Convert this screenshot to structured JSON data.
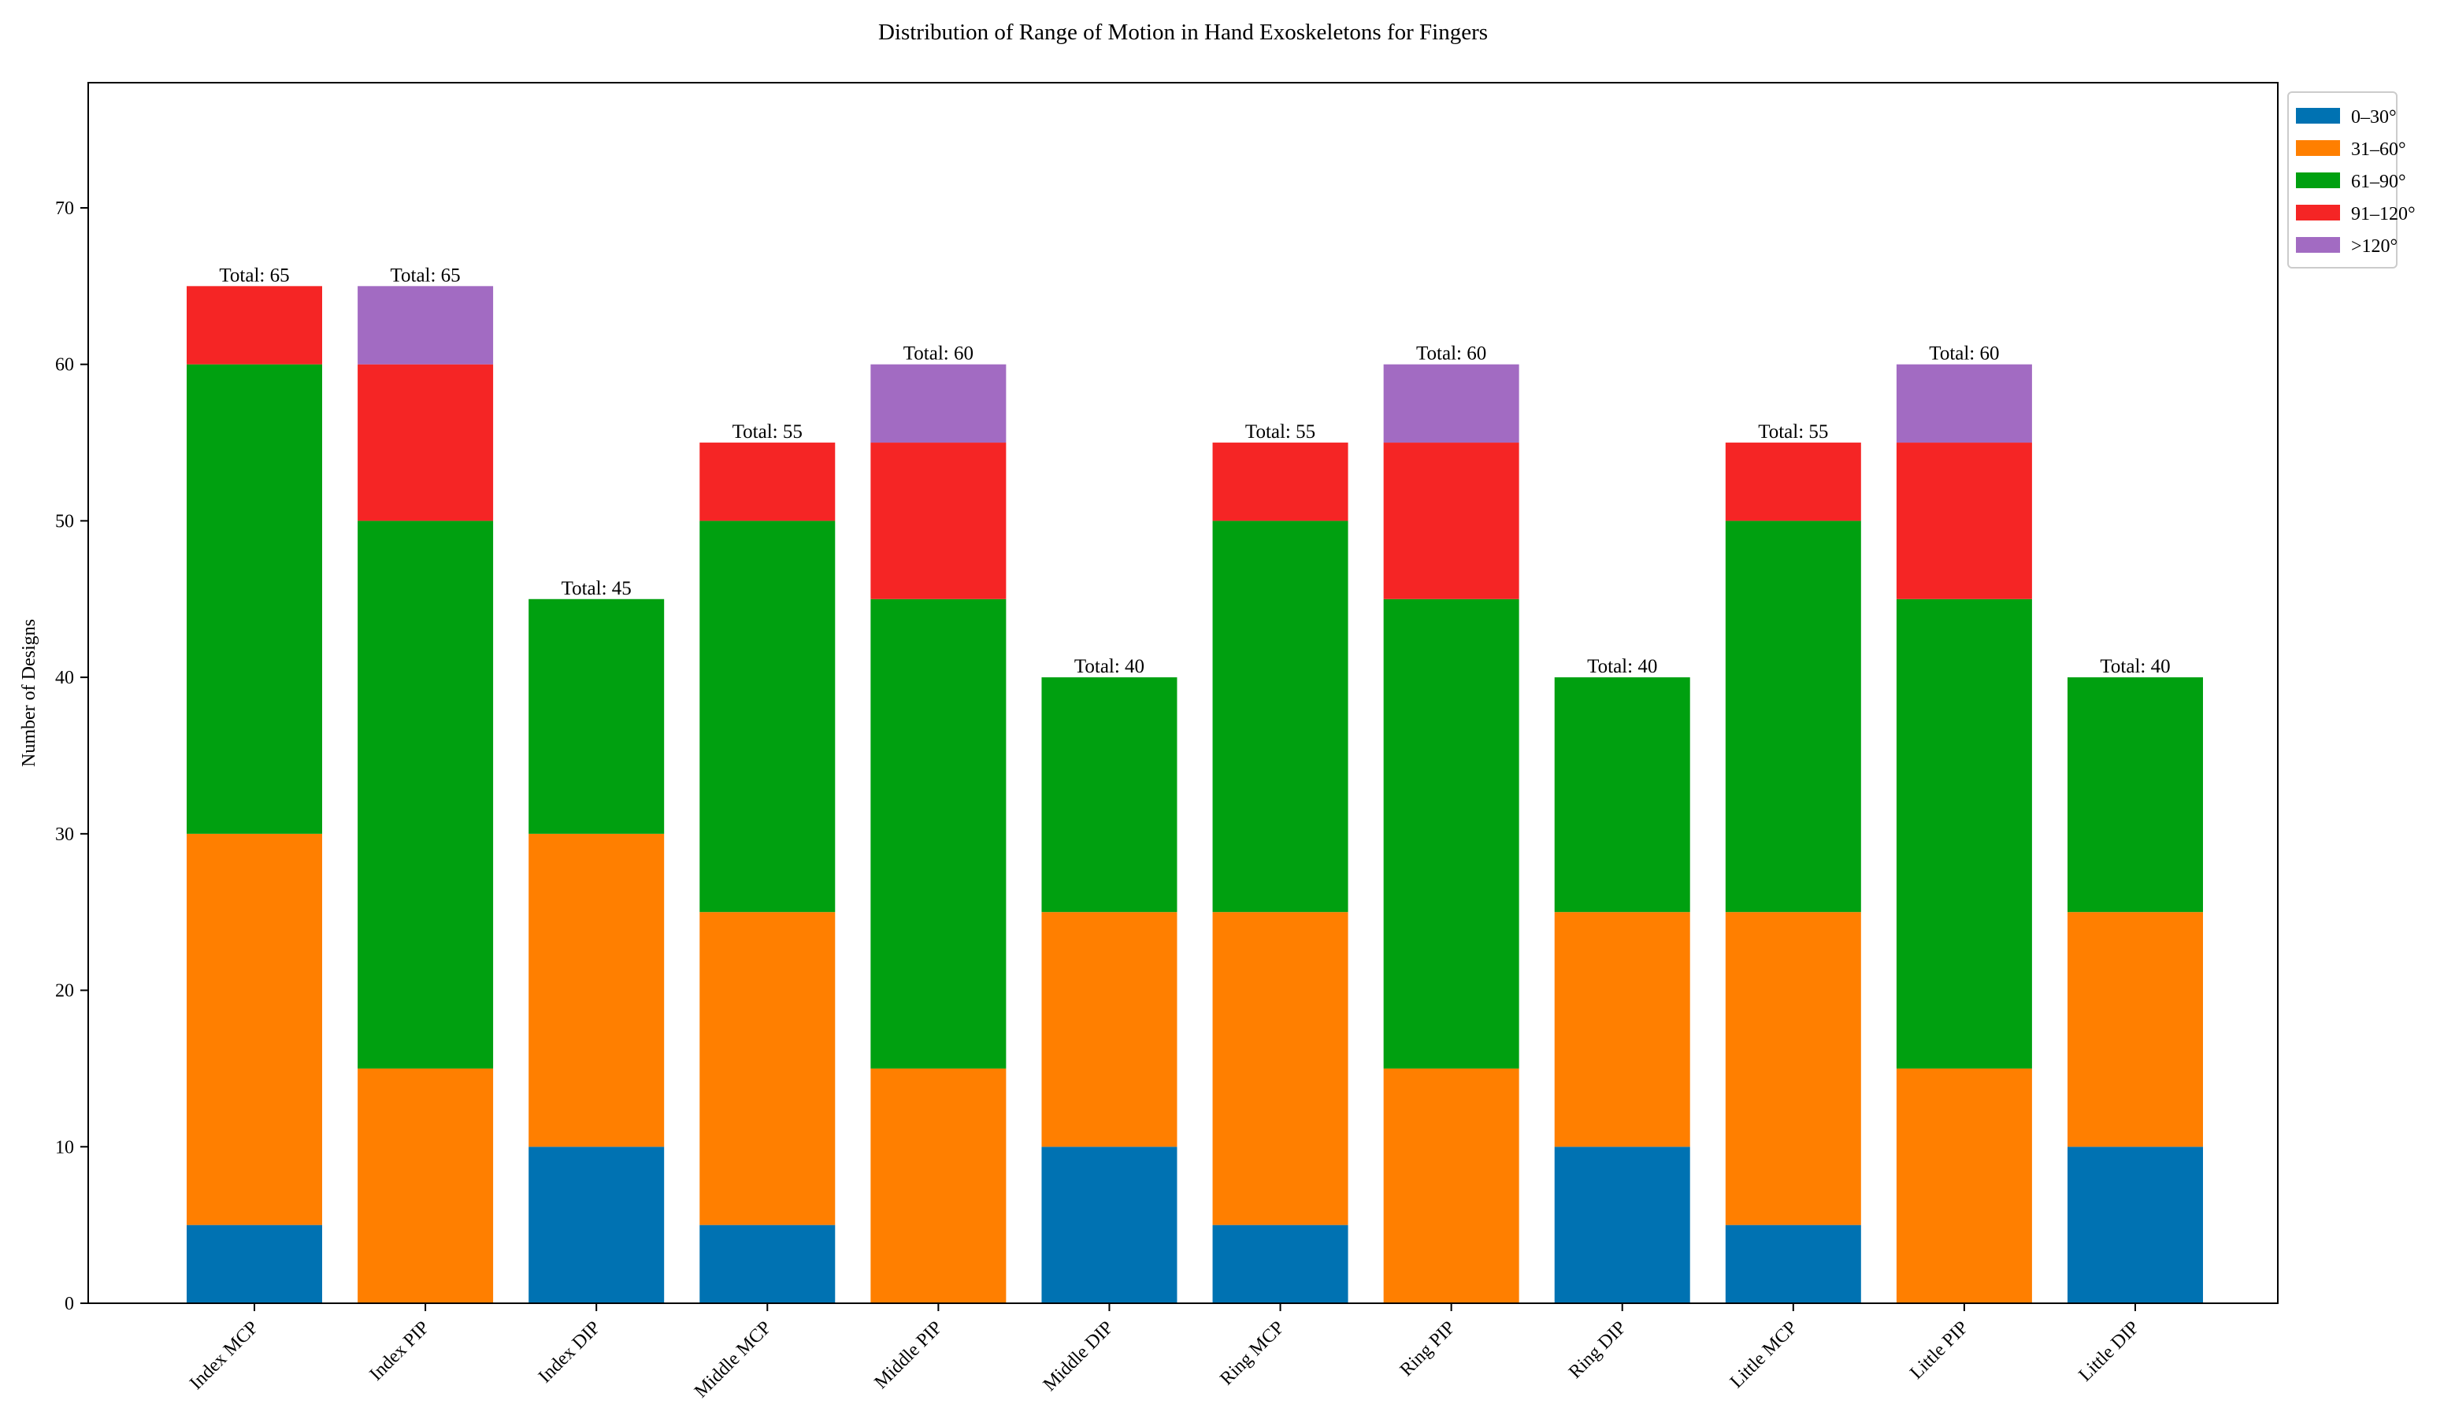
{
  "chart_data": {
    "type": "bar",
    "stacked": true,
    "title": "Distribution of Range of Motion in Hand Exoskeletons for Fingers",
    "xlabel": "",
    "ylabel": "Number of Designs",
    "ylim": [
      0,
      78
    ],
    "yticks": [
      0,
      10,
      20,
      30,
      40,
      50,
      60,
      70
    ],
    "grid": false,
    "legend_position": "top-right, outside plot",
    "categories": [
      "Index MCP",
      "Index PIP",
      "Index DIP",
      "Middle MCP",
      "Middle PIP",
      "Middle DIP",
      "Ring MCP",
      "Ring PIP",
      "Ring DIP",
      "Little MCP",
      "Little PIP",
      "Little DIP"
    ],
    "series": [
      {
        "name": "0–30°",
        "color": "#0072b2",
        "values": [
          5,
          0,
          10,
          5,
          0,
          10,
          5,
          0,
          10,
          5,
          0,
          10
        ]
      },
      {
        "name": "31–60°",
        "color": "#ff7f00",
        "values": [
          25,
          15,
          20,
          20,
          15,
          15,
          20,
          15,
          15,
          20,
          15,
          15
        ]
      },
      {
        "name": "61–90°",
        "color": "#00a010",
        "values": [
          30,
          35,
          15,
          25,
          30,
          15,
          25,
          30,
          15,
          25,
          30,
          15
        ]
      },
      {
        "name": "91–120°",
        "color": "#f52525",
        "values": [
          5,
          10,
          0,
          5,
          10,
          0,
          5,
          10,
          0,
          5,
          10,
          0
        ]
      },
      {
        "name": ">120°",
        "color": "#a26bc2",
        "values": [
          0,
          5,
          0,
          0,
          5,
          0,
          0,
          5,
          0,
          0,
          5,
          0
        ]
      }
    ],
    "total_prefix": "Total: ",
    "totals": [
      65,
      65,
      45,
      55,
      60,
      40,
      55,
      60,
      40,
      55,
      60,
      40
    ]
  }
}
